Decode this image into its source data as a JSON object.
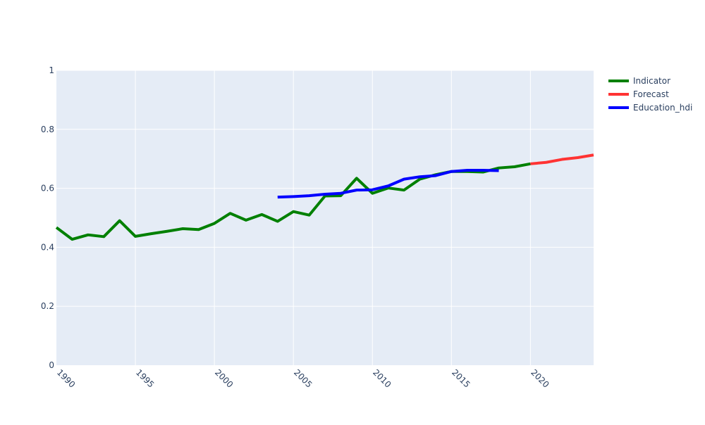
{
  "chart_data": {
    "type": "line",
    "title": "",
    "xlabel": "",
    "ylabel": "",
    "xlim": [
      1990,
      2024
    ],
    "ylim": [
      0,
      1
    ],
    "grid": true,
    "legend_position": "top-right",
    "x_ticks": [
      1990,
      1995,
      2000,
      2005,
      2010,
      2015,
      2020
    ],
    "x_tick_labels": [
      "1990",
      "1995",
      "2000",
      "2005",
      "2010",
      "2015",
      "2020"
    ],
    "y_ticks": [
      0,
      0.2,
      0.4,
      0.6,
      0.8,
      1
    ],
    "y_tick_labels": [
      "0",
      "0.2",
      "0.4",
      "0.6",
      "0.8",
      "1"
    ],
    "plot_background": "#e5ecf6",
    "series": [
      {
        "name": "Indicator",
        "color": "#008000",
        "x": [
          1990,
          1991,
          1992,
          1993,
          1994,
          1995,
          1996,
          1997,
          1998,
          1999,
          2000,
          2001,
          2002,
          2003,
          2004,
          2005,
          2006,
          2007,
          2008,
          2009,
          2010,
          2011,
          2012,
          2013,
          2014,
          2015,
          2016,
          2017,
          2018,
          2019,
          2020
        ],
        "y": [
          0.467,
          0.427,
          0.442,
          0.436,
          0.49,
          0.437,
          0.446,
          0.454,
          0.463,
          0.46,
          0.481,
          0.515,
          0.492,
          0.511,
          0.488,
          0.521,
          0.509,
          0.574,
          0.575,
          0.634,
          0.583,
          0.601,
          0.594,
          0.631,
          0.646,
          0.657,
          0.657,
          0.655,
          0.669,
          0.673,
          0.683
        ]
      },
      {
        "name": "Forecast",
        "color": "#ff3333",
        "x": [
          2020,
          2021,
          2022,
          2023,
          2024
        ],
        "y": [
          0.683,
          0.688,
          0.698,
          0.704,
          0.713
        ]
      },
      {
        "name": "Education_hdi",
        "color": "#0000ff",
        "x": [
          2004,
          2005,
          2006,
          2007,
          2008,
          2009,
          2010,
          2011,
          2012,
          2013,
          2014,
          2015,
          2016,
          2017,
          2018
        ],
        "y": [
          0.57,
          0.572,
          0.575,
          0.58,
          0.583,
          0.594,
          0.595,
          0.608,
          0.631,
          0.639,
          0.643,
          0.657,
          0.661,
          0.661,
          0.66
        ]
      }
    ]
  }
}
